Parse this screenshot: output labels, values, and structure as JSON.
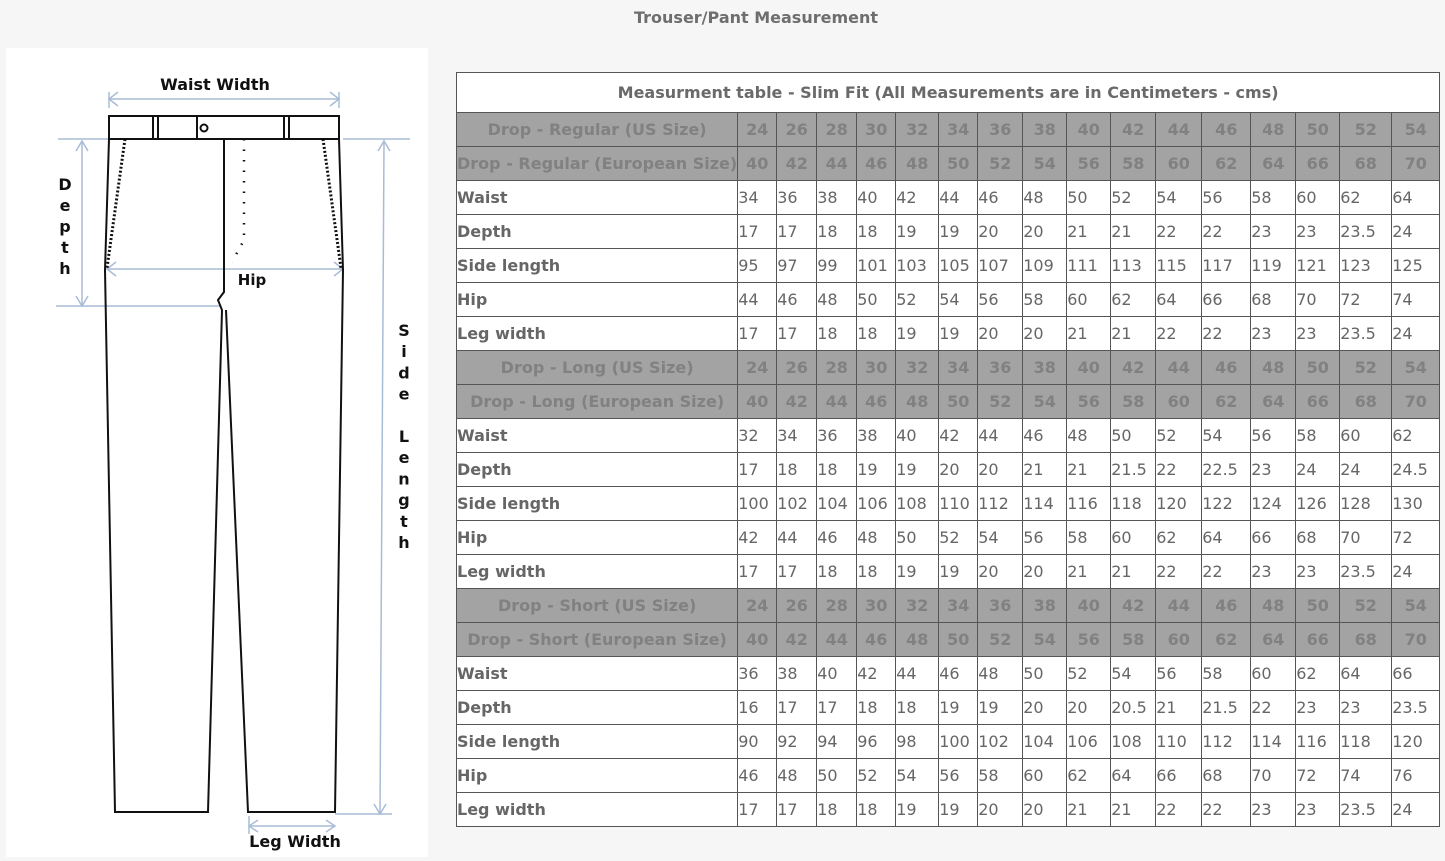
{
  "page_title": "Trouser/Pant Measurement",
  "diagram": {
    "labels": {
      "waist_width": "Waist Width",
      "depth": "Depth",
      "hip": "Hip",
      "side_length": "Side Length",
      "leg_width": "Leg Width"
    },
    "line_color": "#a9bcd6"
  },
  "table": {
    "caption": "Measurment table - Slim Fit (All Measurements are in Centimeters - cms)",
    "rows": [
      {
        "type": "drop",
        "label": "Drop - Regular (US Size)",
        "values": [
          "24",
          "26",
          "28",
          "30",
          "32",
          "34",
          "36",
          "38",
          "40",
          "42",
          "44",
          "46",
          "48",
          "50",
          "52",
          "54"
        ]
      },
      {
        "type": "drop",
        "label": "Drop - Regular (European Size)",
        "values": [
          "40",
          "42",
          "44",
          "46",
          "48",
          "50",
          "52",
          "54",
          "56",
          "58",
          "60",
          "62",
          "64",
          "66",
          "68",
          "70"
        ]
      },
      {
        "type": "meas",
        "label": "Waist",
        "values": [
          "34",
          "36",
          "38",
          "40",
          "42",
          "44",
          "46",
          "48",
          "50",
          "52",
          "54",
          "56",
          "58",
          "60",
          "62",
          "64"
        ]
      },
      {
        "type": "meas",
        "label": "Depth",
        "values": [
          "17",
          "17",
          "18",
          "18",
          "19",
          "19",
          "20",
          "20",
          "21",
          "21",
          "22",
          "22",
          "23",
          "23",
          "23.5",
          "24"
        ]
      },
      {
        "type": "meas",
        "label": "Side length",
        "values": [
          "95",
          "97",
          "99",
          "101",
          "103",
          "105",
          "107",
          "109",
          "111",
          "113",
          "115",
          "117",
          "119",
          "121",
          "123",
          "125"
        ]
      },
      {
        "type": "meas",
        "label": "Hip",
        "values": [
          "44",
          "46",
          "48",
          "50",
          "52",
          "54",
          "56",
          "58",
          "60",
          "62",
          "64",
          "66",
          "68",
          "70",
          "72",
          "74"
        ]
      },
      {
        "type": "meas",
        "label": "Leg width",
        "values": [
          "17",
          "17",
          "18",
          "18",
          "19",
          "19",
          "20",
          "20",
          "21",
          "21",
          "22",
          "22",
          "23",
          "23",
          "23.5",
          "24"
        ]
      },
      {
        "type": "drop",
        "label": "Drop - Long (US Size)",
        "values": [
          "24",
          "26",
          "28",
          "30",
          "32",
          "34",
          "36",
          "38",
          "40",
          "42",
          "44",
          "46",
          "48",
          "50",
          "52",
          "54"
        ]
      },
      {
        "type": "drop",
        "label": "Drop - Long (European Size)",
        "values": [
          "40",
          "42",
          "44",
          "46",
          "48",
          "50",
          "52",
          "54",
          "56",
          "58",
          "60",
          "62",
          "64",
          "66",
          "68",
          "70"
        ]
      },
      {
        "type": "meas",
        "label": "Waist",
        "values": [
          "32",
          "34",
          "36",
          "38",
          "40",
          "42",
          "44",
          "46",
          "48",
          "50",
          "52",
          "54",
          "56",
          "58",
          "60",
          "62"
        ]
      },
      {
        "type": "meas",
        "label": "Depth",
        "values": [
          "17",
          "18",
          "18",
          "19",
          "19",
          "20",
          "20",
          "21",
          "21",
          "21.5",
          "22",
          "22.5",
          "23",
          "24",
          "24",
          "24.5"
        ]
      },
      {
        "type": "meas",
        "label": "Side length",
        "values": [
          "100",
          "102",
          "104",
          "106",
          "108",
          "110",
          "112",
          "114",
          "116",
          "118",
          "120",
          "122",
          "124",
          "126",
          "128",
          "130"
        ]
      },
      {
        "type": "meas",
        "label": "Hip",
        "values": [
          "42",
          "44",
          "46",
          "48",
          "50",
          "52",
          "54",
          "56",
          "58",
          "60",
          "62",
          "64",
          "66",
          "68",
          "70",
          "72"
        ]
      },
      {
        "type": "meas",
        "label": "Leg width",
        "values": [
          "17",
          "17",
          "18",
          "18",
          "19",
          "19",
          "20",
          "20",
          "21",
          "21",
          "22",
          "22",
          "23",
          "23",
          "23.5",
          "24"
        ]
      },
      {
        "type": "drop",
        "label": "Drop - Short (US Size)",
        "values": [
          "24",
          "26",
          "28",
          "30",
          "32",
          "34",
          "36",
          "38",
          "40",
          "42",
          "44",
          "46",
          "48",
          "50",
          "52",
          "54"
        ]
      },
      {
        "type": "drop",
        "label": "Drop - Short (European Size)",
        "values": [
          "40",
          "42",
          "44",
          "46",
          "48",
          "50",
          "52",
          "54",
          "56",
          "58",
          "60",
          "62",
          "64",
          "66",
          "68",
          "70"
        ]
      },
      {
        "type": "meas",
        "label": "Waist",
        "values": [
          "36",
          "38",
          "40",
          "42",
          "44",
          "46",
          "48",
          "50",
          "52",
          "54",
          "56",
          "58",
          "60",
          "62",
          "64",
          "66"
        ]
      },
      {
        "type": "meas",
        "label": "Depth",
        "values": [
          "16",
          "17",
          "17",
          "18",
          "18",
          "19",
          "19",
          "20",
          "20",
          "20.5",
          "21",
          "21.5",
          "22",
          "23",
          "23",
          "23.5"
        ]
      },
      {
        "type": "meas",
        "label": "Side length",
        "values": [
          "90",
          "92",
          "94",
          "96",
          "98",
          "100",
          "102",
          "104",
          "106",
          "108",
          "110",
          "112",
          "114",
          "116",
          "118",
          "120"
        ]
      },
      {
        "type": "meas",
        "label": "Hip",
        "values": [
          "46",
          "48",
          "50",
          "52",
          "54",
          "56",
          "58",
          "60",
          "62",
          "64",
          "66",
          "68",
          "70",
          "72",
          "74",
          "76"
        ]
      },
      {
        "type": "meas",
        "label": "Leg width",
        "values": [
          "17",
          "17",
          "18",
          "18",
          "19",
          "19",
          "20",
          "20",
          "21",
          "21",
          "22",
          "22",
          "23",
          "23",
          "23.5",
          "24"
        ]
      }
    ]
  }
}
